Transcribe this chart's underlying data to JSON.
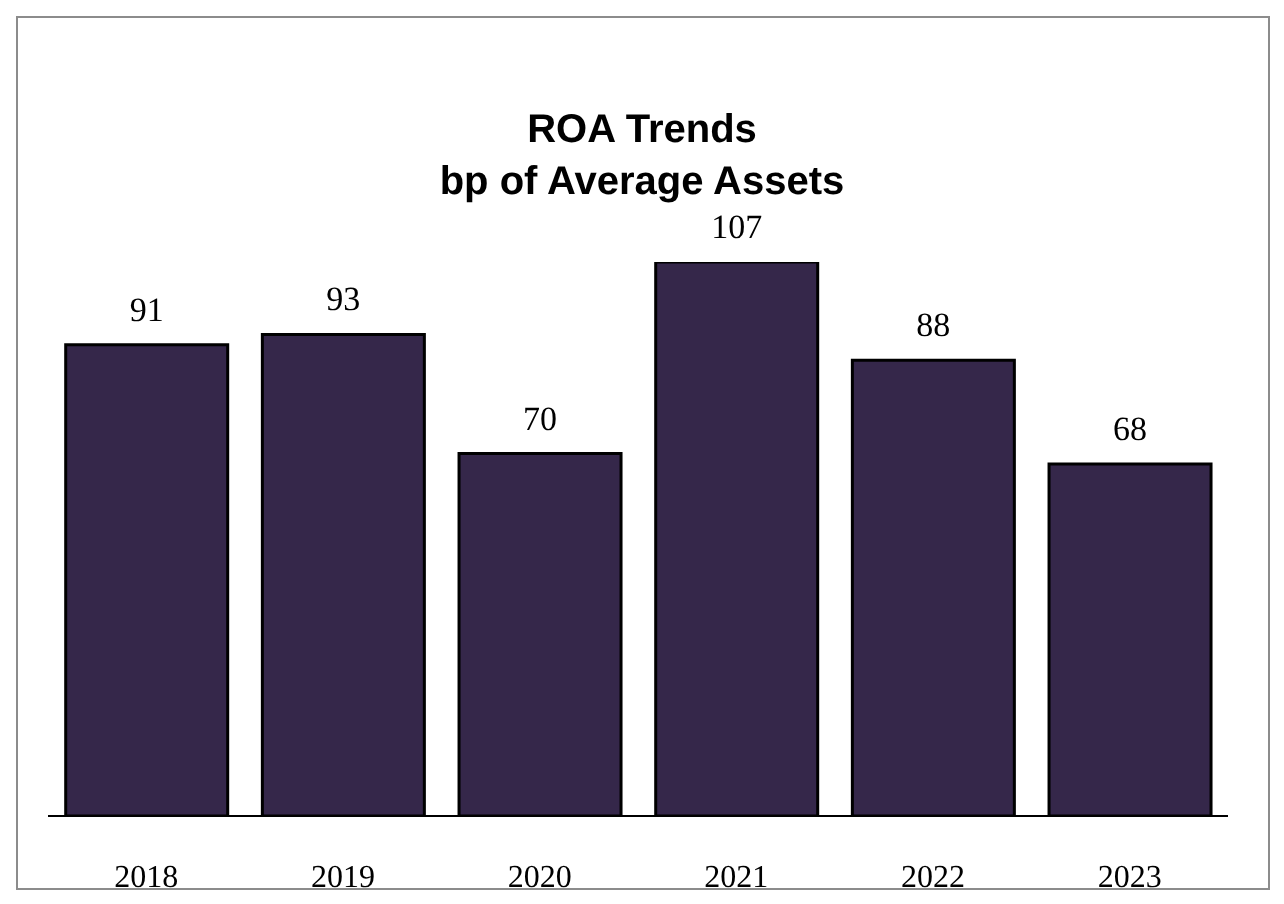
{
  "chart_data": {
    "type": "bar",
    "title": "ROA Trends",
    "subtitle": "bp of Average Assets",
    "categories": [
      "2018",
      "2019",
      "2020",
      "2021",
      "2022",
      "2023"
    ],
    "values": [
      91,
      93,
      70,
      107,
      88,
      68
    ],
    "color": "#35274a",
    "data_labels": true,
    "tick_labels": "x"
  }
}
